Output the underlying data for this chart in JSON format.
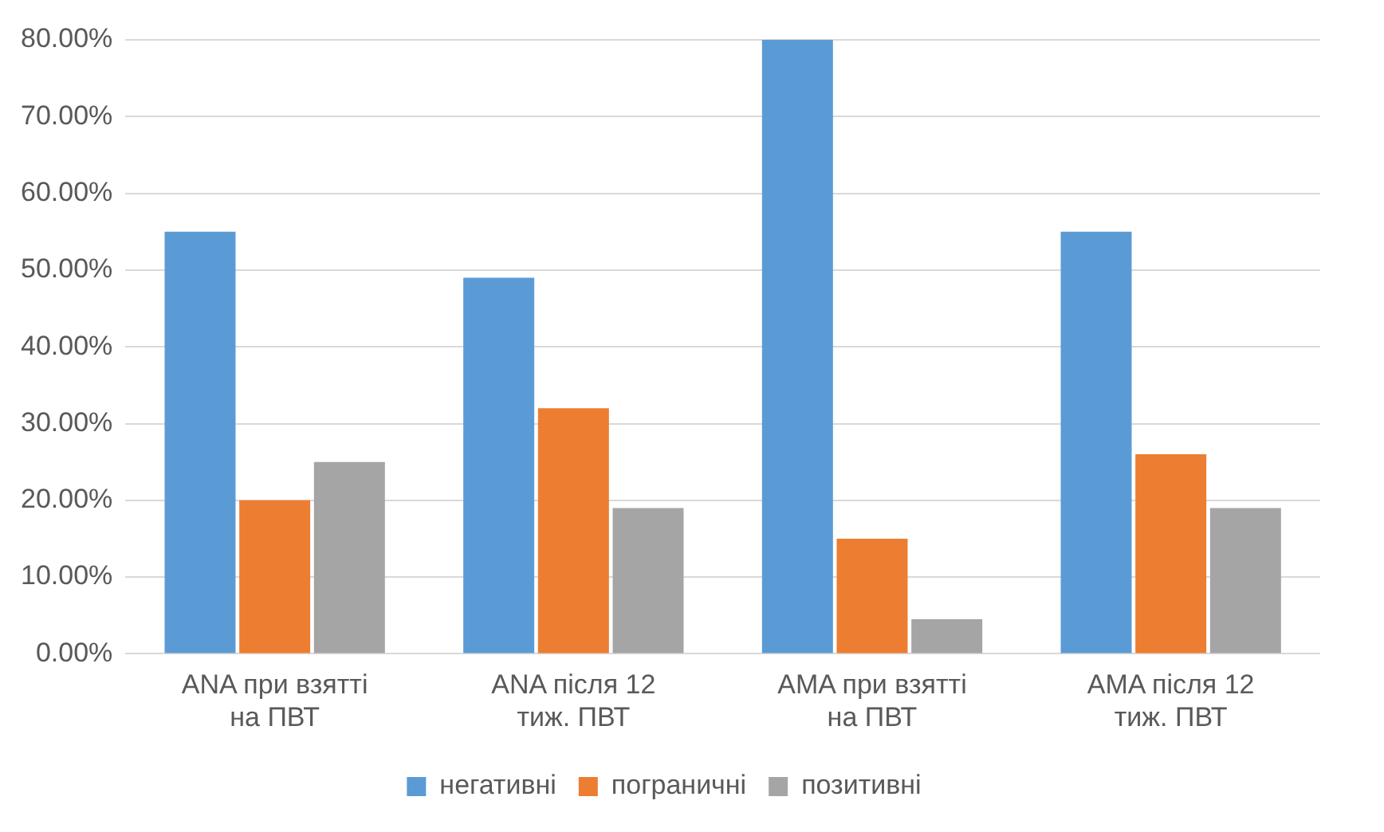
{
  "chart_data": {
    "type": "bar",
    "categories": [
      "ANA при взятті на ПВТ",
      "ANA після 12 тиж. ПВТ",
      "AMA при взятті на ПВТ",
      "AMA після 12 тиж. ПВТ"
    ],
    "series": [
      {
        "name": "негативні",
        "color": "#5b9bd5",
        "values": [
          55,
          49,
          80,
          55
        ]
      },
      {
        "name": "пограничні",
        "color": "#ed7d31",
        "values": [
          20,
          32,
          15,
          26
        ]
      },
      {
        "name": "позитивні",
        "color": "#a5a5a5",
        "values": [
          25,
          19,
          4.5,
          19
        ]
      }
    ],
    "ylim": [
      0,
      80
    ],
    "yticks": [
      {
        "value": 0,
        "label": "0.00%"
      },
      {
        "value": 10,
        "label": "10.00%"
      },
      {
        "value": 20,
        "label": "20.00%"
      },
      {
        "value": 30,
        "label": "30.00%"
      },
      {
        "value": 40,
        "label": "40.00%"
      },
      {
        "value": 50,
        "label": "50.00%"
      },
      {
        "value": 60,
        "label": "60.00%"
      },
      {
        "value": 70,
        "label": "70.00%"
      },
      {
        "value": 80,
        "label": "80.00%"
      }
    ],
    "grid": "y",
    "legend": "bottom"
  }
}
